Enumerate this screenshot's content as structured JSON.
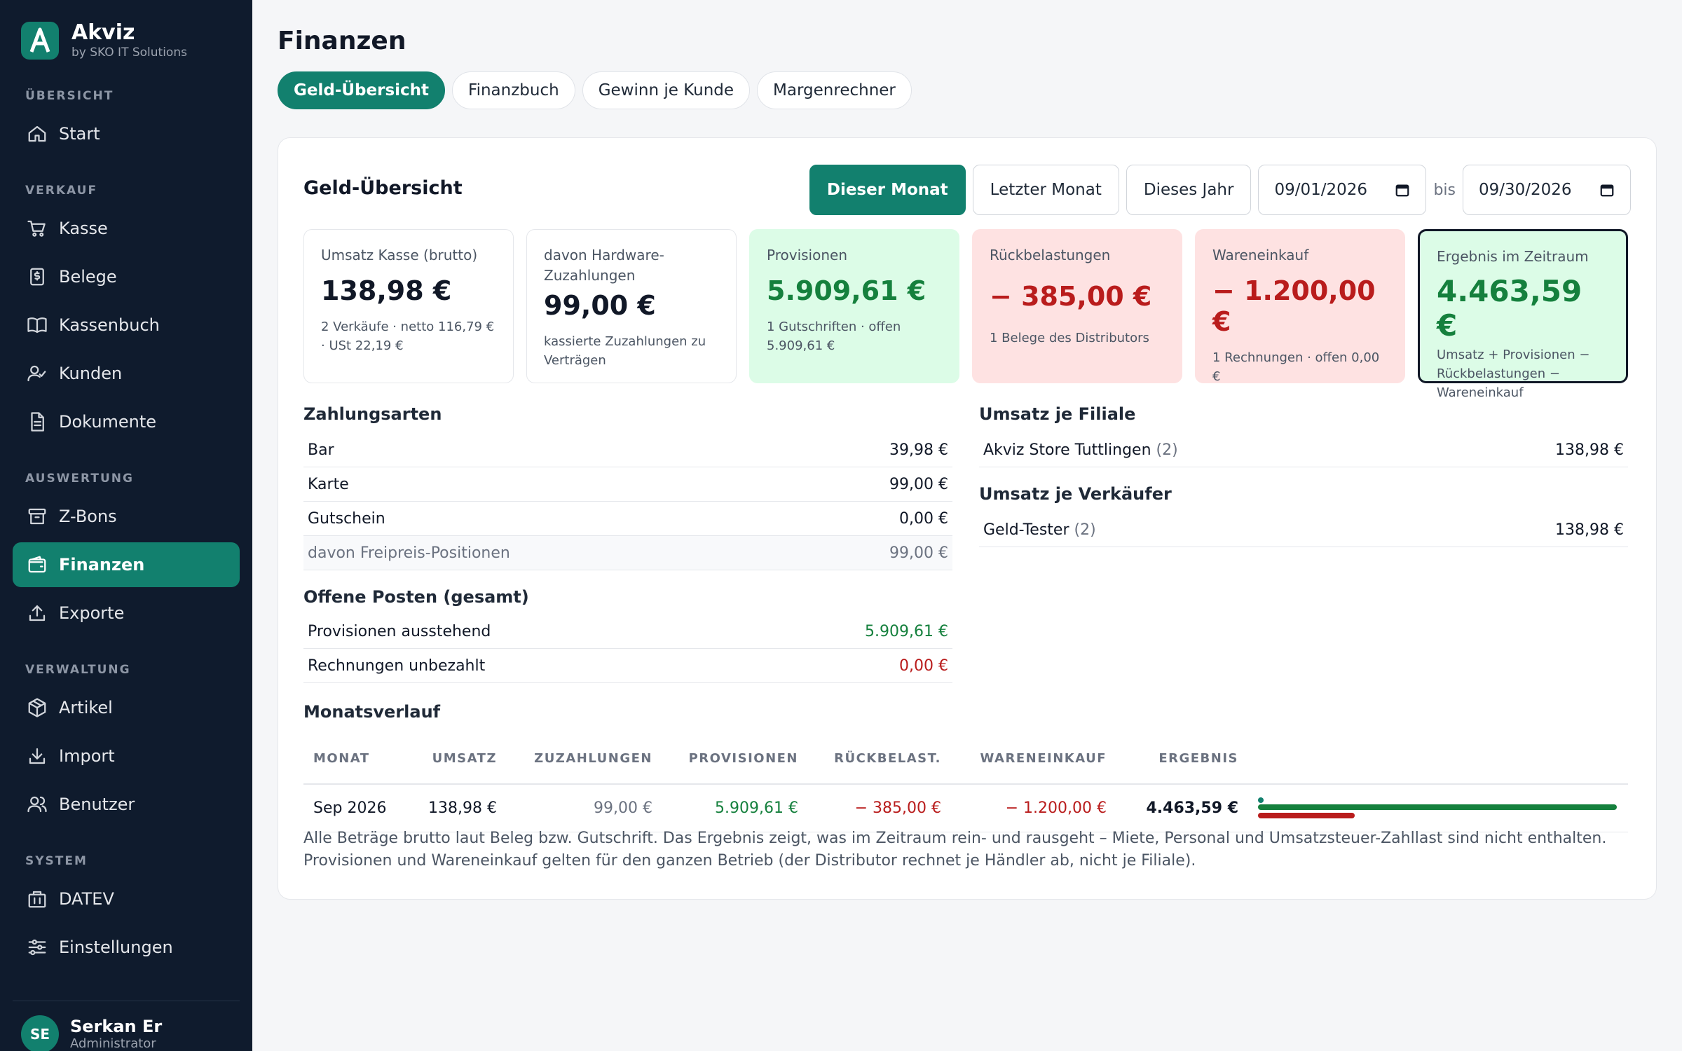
{
  "brand": {
    "name": "Akviz",
    "sub": "by SKO IT Solutions"
  },
  "sidebar": {
    "sections": [
      "ÜBERSICHT",
      "VERKAUF",
      "AUSWERTUNG",
      "VERWALTUNG",
      "SYSTEM"
    ],
    "items": [
      {
        "label": "Start",
        "icon": "home-icon"
      },
      {
        "label": "Kasse",
        "icon": "cart-icon"
      },
      {
        "label": "Belege",
        "icon": "receipt-icon"
      },
      {
        "label": "Kassenbuch",
        "icon": "book-icon"
      },
      {
        "label": "Kunden",
        "icon": "user-check-icon"
      },
      {
        "label": "Dokumente",
        "icon": "document-icon"
      },
      {
        "label": "Z-Bons",
        "icon": "archive-icon"
      },
      {
        "label": "Finanzen",
        "icon": "wallet-icon",
        "active": true
      },
      {
        "label": "Exporte",
        "icon": "upload-icon"
      },
      {
        "label": "Artikel",
        "icon": "package-icon"
      },
      {
        "label": "Import",
        "icon": "download-icon"
      },
      {
        "label": "Benutzer",
        "icon": "users-icon"
      },
      {
        "label": "DATEV",
        "icon": "building-icon"
      },
      {
        "label": "Einstellungen",
        "icon": "sliders-icon"
      }
    ]
  },
  "user": {
    "initials": "SE",
    "name": "Serkan Er",
    "role": "Administrator"
  },
  "page": {
    "title": "Finanzen",
    "tabs": [
      "Geld-Übersicht",
      "Finanzbuch",
      "Gewinn je Kunde",
      "Margenrechner"
    ]
  },
  "overview": {
    "title": "Geld-Übersicht",
    "filters": {
      "this_month": "Dieser Monat",
      "last_month": "Letzter Monat",
      "this_year": "Dieses Jahr",
      "from": "09/01/2026",
      "bis": "bis",
      "to": "09/30/2026"
    },
    "kpis": [
      {
        "label": "Umsatz Kasse (brutto)",
        "value": "138,98 €",
        "sub": "2 Verkäufe · netto 116,79 € · USt 22,19 €"
      },
      {
        "label": "davon Hardware-Zuzahlungen",
        "value": "99,00 €",
        "sub": "kassierte Zuzahlungen zu Verträgen"
      },
      {
        "label": "Provisionen",
        "value": "5.909,61 €",
        "sub": "1 Gutschriften · offen 5.909,61 €"
      },
      {
        "label": "Rückbelastungen",
        "value": "− 385,00 €",
        "sub": "1 Belege des Distributors"
      },
      {
        "label": "Wareneinkauf",
        "value": "− 1.200,00 €",
        "sub": "1 Rechnungen · offen 0,00 €"
      },
      {
        "label": "Ergebnis im Zeitraum",
        "value": "4.463,59 €",
        "sub": "Umsatz + Provisionen − Rückbelastungen − Wareneinkauf"
      }
    ],
    "zahlungsarten": {
      "title": "Zahlungsarten",
      "rows": [
        {
          "label": "Bar",
          "value": "39,98 €"
        },
        {
          "label": "Karte",
          "value": "99,00 €"
        },
        {
          "label": "Gutschein",
          "value": "0,00 €"
        },
        {
          "label": "davon Freipreis-Positionen",
          "value": "99,00 €"
        }
      ]
    },
    "offene_posten": {
      "title": "Offene Posten (gesamt)",
      "rows": [
        {
          "label": "Provisionen ausstehend",
          "value": "5.909,61 €"
        },
        {
          "label": "Rechnungen unbezahlt",
          "value": "0,00 €"
        }
      ]
    },
    "filiale": {
      "title": "Umsatz je Filiale",
      "rows": [
        {
          "label": "Akviz Store Tuttlingen",
          "count": "(2)",
          "value": "138,98 €"
        }
      ]
    },
    "verkaeufer": {
      "title": "Umsatz je Verkäufer",
      "rows": [
        {
          "label": "Geld-Tester",
          "count": "(2)",
          "value": "138,98 €"
        }
      ]
    },
    "monatsverlauf": {
      "title": "Monatsverlauf",
      "headers": [
        "MONAT",
        "UMSATZ",
        "ZUZAHLUNGEN",
        "PROVISIONEN",
        "RÜCKBELAST.",
        "WARENEINKAUF",
        "ERGEBNIS"
      ],
      "rows": [
        {
          "monat": "Sep 2026",
          "umsatz": "138,98 €",
          "zuzahlungen": "99,00 €",
          "provisionen": "5.909,61 €",
          "rueck": "− 385,00 €",
          "waren": "− 1.200,00 €",
          "ergebnis": "4.463,59 €",
          "bar_positive": 1.0,
          "bar_negative": 0.27
        }
      ]
    },
    "note": "Alle Beträge brutto laut Beleg bzw. Gutschrift. Das Ergebnis zeigt, was im Zeitraum rein- und rausgeht – Miete, Personal und Umsatzsteuer-Zahllast sind nicht enthalten. Provisionen und Wareneinkauf gelten für den ganzen Betrieb (der Distributor rechnet je Händler ab, nicht je Filiale).",
    "colors": {
      "accent": "#12806e",
      "positive": "#15803d",
      "negative": "#b91c1c"
    }
  }
}
